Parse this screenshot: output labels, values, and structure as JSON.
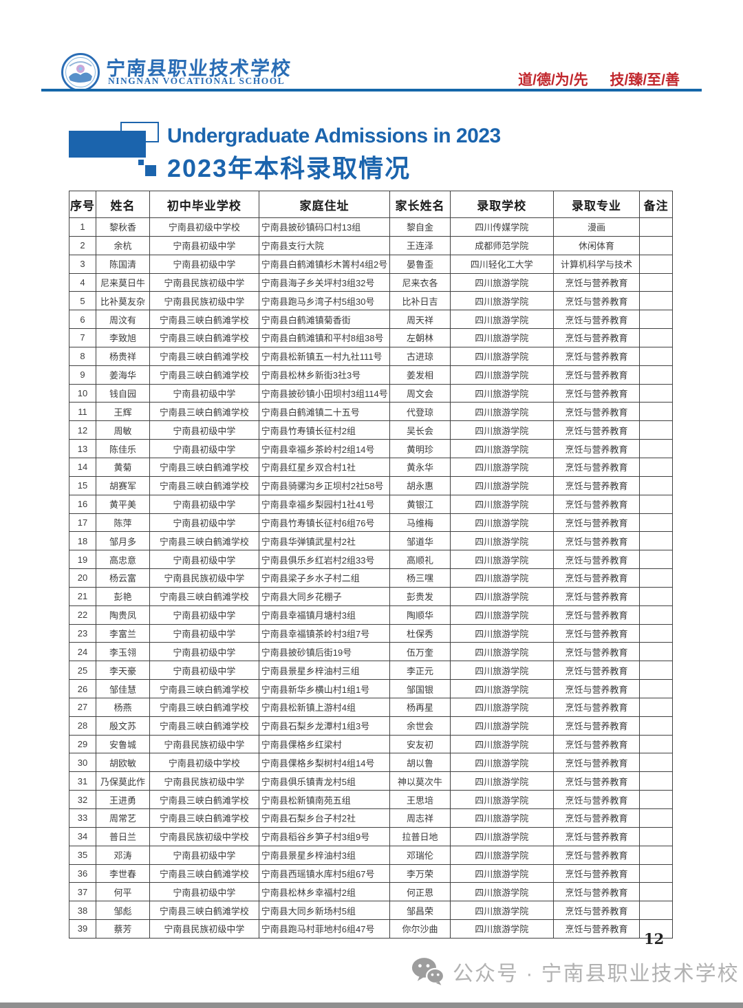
{
  "header": {
    "school_name_zh": "宁南县职业技术学校",
    "school_name_en": "NINGNAN VOCATIONAL SCHOOL",
    "slogan_part1": "道/德/为/先",
    "slogan_part2": "技/臻/至/善"
  },
  "title": {
    "line_en": "Undergraduate Admissions in 2023",
    "line_zh": "2023年本科录取情况"
  },
  "table": {
    "headers": [
      "序号",
      "姓名",
      "初中毕业学校",
      "家庭住址",
      "家长姓名",
      "录取学校",
      "录取专业",
      "备注"
    ],
    "rows": [
      [
        "1",
        "黎秋香",
        "宁南县初级中学校",
        "宁南县披砂镇码口村13组",
        "黎自金",
        "四川传媒学院",
        "漫画",
        ""
      ],
      [
        "2",
        "余杭",
        "宁南县初级中学",
        "宁南县支行大院",
        "王连泽",
        "成都师范学院",
        "休闲体育",
        ""
      ],
      [
        "3",
        "陈国清",
        "宁南县初级中学",
        "宁南县白鹤滩镇杉木箐村4组2号",
        "晏鲁歪",
        "四川轻化工大学",
        "计算机科学与技术",
        ""
      ],
      [
        "4",
        "尼来莫日牛",
        "宁南县民族初级中学",
        "宁南县海子乡关坪村3组32号",
        "尼来衣各",
        "四川旅游学院",
        "烹饪与营养教育",
        ""
      ],
      [
        "5",
        "比补莫友杂",
        "宁南县民族初级中学",
        "宁南县跑马乡湾子村5组30号",
        "比补日吉",
        "四川旅游学院",
        "烹饪与营养教育",
        ""
      ],
      [
        "6",
        "周汶有",
        "宁南县三峡白鹤滩学校",
        "宁南县白鹤滩镇菊香街",
        "周天祥",
        "四川旅游学院",
        "烹饪与营养教育",
        ""
      ],
      [
        "7",
        "李致旭",
        "宁南县三峡白鹤滩学校",
        "宁南县白鹤滩镇和平村8组38号",
        "左朝林",
        "四川旅游学院",
        "烹饪与营养教育",
        ""
      ],
      [
        "8",
        "杨贵祥",
        "宁南县三峡白鹤滩学校",
        "宁南县松新镇五一村九社111号",
        "古进琼",
        "四川旅游学院",
        "烹饪与营养教育",
        ""
      ],
      [
        "9",
        "姜海华",
        "宁南县三峡白鹤滩学校",
        "宁南县松林乡新街3社3号",
        "姜发相",
        "四川旅游学院",
        "烹饪与营养教育",
        ""
      ],
      [
        "10",
        "钱自园",
        "宁南县初级中学",
        "宁南县披砂镇小田坝村3组114号",
        "周文会",
        "四川旅游学院",
        "烹饪与营养教育",
        ""
      ],
      [
        "11",
        "王辉",
        "宁南县三峡白鹤滩学校",
        "宁南县白鹤滩镇二十五号",
        "代登琼",
        "四川旅游学院",
        "烹饪与营养教育",
        ""
      ],
      [
        "12",
        "周敏",
        "宁南县初级中学",
        "宁南县竹寿镇长征村2组",
        "吴长会",
        "四川旅游学院",
        "烹饪与营养教育",
        ""
      ],
      [
        "13",
        "陈佳乐",
        "宁南县初级中学",
        "宁南县幸福乡茶岭村2组14号",
        "黄明珍",
        "四川旅游学院",
        "烹饪与营养教育",
        ""
      ],
      [
        "14",
        "黄菊",
        "宁南县三峡白鹤滩学校",
        "宁南县红星乡双合村1社",
        "黄永华",
        "四川旅游学院",
        "烹饪与营养教育",
        ""
      ],
      [
        "15",
        "胡赛军",
        "宁南县三峡白鹤滩学校",
        "宁南县骑骡沟乡正坝村2社58号",
        "胡永惠",
        "四川旅游学院",
        "烹饪与营养教育",
        ""
      ],
      [
        "16",
        "黄平美",
        "宁南县初级中学",
        "宁南县幸福乡梨园村1社41号",
        "黄银江",
        "四川旅游学院",
        "烹饪与营养教育",
        ""
      ],
      [
        "17",
        "陈萍",
        "宁南县初级中学",
        "宁南县竹寿镇长征村6组76号",
        "马维梅",
        "四川旅游学院",
        "烹饪与营养教育",
        ""
      ],
      [
        "18",
        "邹月多",
        "宁南县三峡白鹤滩学校",
        "宁南县华弹镇武星村2社",
        "邹道华",
        "四川旅游学院",
        "烹饪与营养教育",
        ""
      ],
      [
        "19",
        "高忠意",
        "宁南县初级中学",
        "宁南县俱乐乡红岩村2组33号",
        "高顺礼",
        "四川旅游学院",
        "烹饪与营养教育",
        ""
      ],
      [
        "20",
        "杨云富",
        "宁南县民族初级中学",
        "宁南县梁子乡水子村二组",
        "杨三嘿",
        "四川旅游学院",
        "烹饪与营养教育",
        ""
      ],
      [
        "21",
        "彭艳",
        "宁南县三峡白鹤滩学校",
        "宁南县大同乡花棚子",
        "彭贵发",
        "四川旅游学院",
        "烹饪与营养教育",
        ""
      ],
      [
        "22",
        "陶贵凤",
        "宁南县初级中学",
        "宁南县幸福镇月塘村3组",
        "陶顺华",
        "四川旅游学院",
        "烹饪与营养教育",
        ""
      ],
      [
        "23",
        "李富兰",
        "宁南县初级中学",
        "宁南县幸福镇茶岭村3组7号",
        "杜保秀",
        "四川旅游学院",
        "烹饪与营养教育",
        ""
      ],
      [
        "24",
        "李玉翎",
        "宁南县初级中学",
        "宁南县披砂镇后街19号",
        "伍万奎",
        "四川旅游学院",
        "烹饪与营养教育",
        ""
      ],
      [
        "25",
        "李天豪",
        "宁南县初级中学",
        "宁南县景星乡梓油村三组",
        "李正元",
        "四川旅游学院",
        "烹饪与营养教育",
        ""
      ],
      [
        "26",
        "邹佳慧",
        "宁南县三峡白鹤滩学校",
        "宁南县新华乡横山村1组1号",
        "邹国银",
        "四川旅游学院",
        "烹饪与营养教育",
        ""
      ],
      [
        "27",
        "杨燕",
        "宁南县三峡白鹤滩学校",
        "宁南县松新镇上游村4组",
        "杨再星",
        "四川旅游学院",
        "烹饪与营养教育",
        ""
      ],
      [
        "28",
        "殷文苏",
        "宁南县三峡白鹤滩学校",
        "宁南县石梨乡龙潭村1组3号",
        "余世会",
        "四川旅游学院",
        "烹饪与营养教育",
        ""
      ],
      [
        "29",
        "安鲁城",
        "宁南县民族初级中学",
        "宁南县倮格乡红梁村",
        "安友初",
        "四川旅游学院",
        "烹饪与营养教育",
        ""
      ],
      [
        "30",
        "胡欧敏",
        "宁南县初级中学校",
        "宁南县倮格乡梨树村4组14号",
        "胡以鲁",
        "四川旅游学院",
        "烹饪与营养教育",
        ""
      ],
      [
        "31",
        "乃保莫此作",
        "宁南县民族初级中学",
        "宁南县俱乐镇青龙村5组",
        "神以莫次牛",
        "四川旅游学院",
        "烹饪与营养教育",
        ""
      ],
      [
        "32",
        "王进勇",
        "宁南县三峡白鹤滩学校",
        "宁南县松新镇南苑五组",
        "王思培",
        "四川旅游学院",
        "烹饪与营养教育",
        ""
      ],
      [
        "33",
        "周常艺",
        "宁南县三峡白鹤滩学校",
        "宁南县石梨乡台子村2社",
        "周志祥",
        "四川旅游学院",
        "烹饪与营养教育",
        ""
      ],
      [
        "34",
        "普日兰",
        "宁南县民族初级中学校",
        "宁南县稻谷乡笋子村3组9号",
        "拉普日地",
        "四川旅游学院",
        "烹饪与营养教育",
        ""
      ],
      [
        "35",
        "邓涛",
        "宁南县初级中学",
        "宁南县景星乡梓油村3组",
        "邓瑞伦",
        "四川旅游学院",
        "烹饪与营养教育",
        ""
      ],
      [
        "36",
        "李世春",
        "宁南县三峡白鹤滩学校",
        "宁南县西瑶镇水库村5组67号",
        "李万荣",
        "四川旅游学院",
        "烹饪与营养教育",
        ""
      ],
      [
        "37",
        "何平",
        "宁南县初级中学",
        "宁南县松林乡幸福村2组",
        "何正恩",
        "四川旅游学院",
        "烹饪与营养教育",
        ""
      ],
      [
        "38",
        "邹彪",
        "宁南县三峡白鹤滩学校",
        "宁南县大同乡新场村5组",
        "邹昌荣",
        "四川旅游学院",
        "烹饪与营养教育",
        ""
      ],
      [
        "39",
        "蔡芳",
        "宁南县民族初级中学",
        "宁南县跑马村菲地村6组47号",
        "你尔沙曲",
        "四川旅游学院",
        "烹饪与营养教育",
        ""
      ]
    ]
  },
  "footer": {
    "page_number": "12",
    "wechat_label": "公众号 · 宁南县职业技术学校"
  },
  "colors": {
    "brand_blue": "#1b64ad",
    "rule_blue": "#1567a9",
    "slogan_red": "#c1272d",
    "footer_gray": "#b2b2b2"
  }
}
